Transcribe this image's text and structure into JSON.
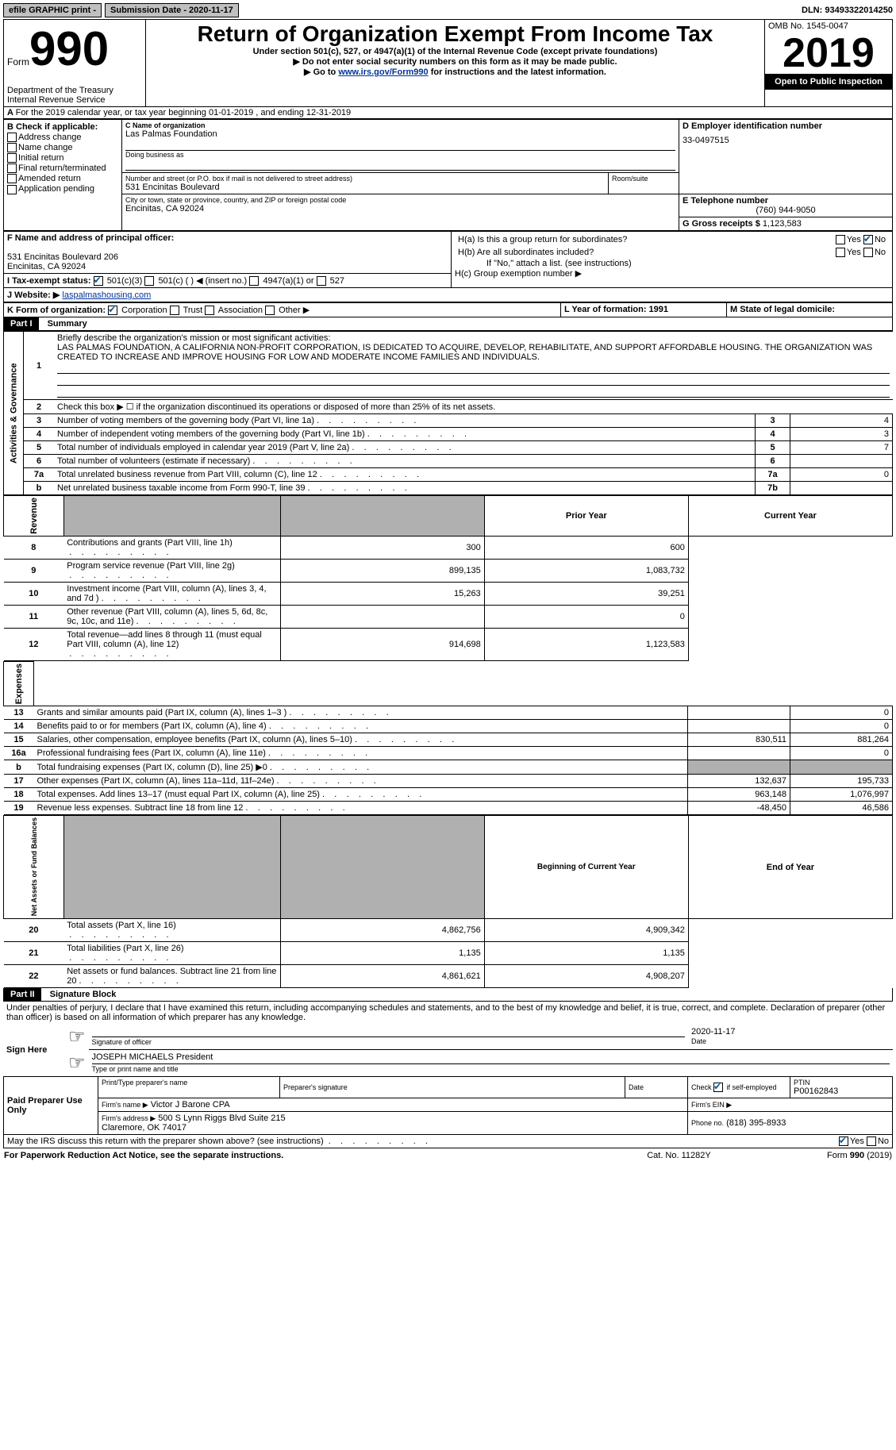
{
  "top": {
    "efile": "efile GRAPHIC print -",
    "submission": "Submission Date - 2020-11-17",
    "dln": "DLN: 93493322014250"
  },
  "header": {
    "form_word": "Form",
    "form_num": "990",
    "dept": "Department of the Treasury\nInternal Revenue Service",
    "title": "Return of Organization Exempt From Income Tax",
    "subtitle": "Under section 501(c), 527, or 4947(a)(1) of the Internal Revenue Code (except private foundations)",
    "note1": "▶ Do not enter social security numbers on this form as it may be made public.",
    "note2_pre": "▶ Go to ",
    "note2_link": "www.irs.gov/Form990",
    "note2_post": " for instructions and the latest information.",
    "omb": "OMB No. 1545-0047",
    "year": "2019",
    "inspect": "Open to Public Inspection"
  },
  "A": "For the 2019 calendar year, or tax year beginning 01-01-2019   , and ending 12-31-2019",
  "B": {
    "label": "B Check if applicable:",
    "items": [
      "Address change",
      "Name change",
      "Initial return",
      "Final return/terminated",
      "Amended return",
      "Application pending"
    ]
  },
  "C": {
    "name_label": "C Name of organization",
    "name": "Las Palmas Foundation",
    "dba_label": "Doing business as",
    "addr_label": "Number and street (or P.O. box if mail is not delivered to street address)",
    "room_label": "Room/suite",
    "addr": "531 Encinitas Boulevard",
    "city_label": "City or town, state or province, country, and ZIP or foreign postal code",
    "city": "Encinitas, CA  92024"
  },
  "D": {
    "label": "D Employer identification number",
    "val": "33-0497515"
  },
  "E": {
    "label": "E Telephone number",
    "val": "(760) 944-9050"
  },
  "G": {
    "label": "G Gross receipts $",
    "val": "1,123,583"
  },
  "F": {
    "label": "F Name and address of principal officer:",
    "addr1": "531 Encinitas Boulevard 206",
    "addr2": "Encinitas, CA  92024"
  },
  "H": {
    "a": "H(a)  Is this a group return for subordinates?",
    "b": "H(b)  Are all subordinates included?",
    "note": "If \"No,\" attach a list. (see instructions)",
    "c": "H(c)  Group exemption number ▶",
    "yes": "Yes",
    "no": "No"
  },
  "I": {
    "label": "I   Tax-exempt status:",
    "o1": "501(c)(3)",
    "o2": "501(c) (  ) ◀ (insert no.)",
    "o3": "4947(a)(1) or",
    "o4": "527"
  },
  "J": {
    "label": "J   Website: ▶",
    "val": "laspalmashousing.com"
  },
  "K": {
    "label": "K Form of organization:",
    "o1": "Corporation",
    "o2": "Trust",
    "o3": "Association",
    "o4": "Other ▶"
  },
  "L": {
    "label": "L Year of formation: 1991"
  },
  "M": {
    "label": "M State of legal domicile:"
  },
  "part1": {
    "header": "Part I",
    "title": "Summary",
    "q1": "Briefly describe the organization's mission or most significant activities:",
    "mission": "LAS PALMAS FOUNDATION, A CALIFORNIA NON-PROFIT CORPORATION, IS DEDICATED TO ACQUIRE, DEVELOP, REHABILITATE, AND SUPPORT AFFORDABLE HOUSING. THE ORGANIZATION WAS CREATED TO INCREASE AND IMPROVE HOUSING FOR LOW AND MODERATE INCOME FAMILIES AND INDIVIDUALS.",
    "q2": "Check this box ▶ ☐  if the organization discontinued its operations or disposed of more than 25% of its net assets.",
    "rows_gov": [
      {
        "n": "3",
        "t": "Number of voting members of the governing body (Part VI, line 1a)",
        "box": "3",
        "v": "4"
      },
      {
        "n": "4",
        "t": "Number of independent voting members of the governing body (Part VI, line 1b)",
        "box": "4",
        "v": "3"
      },
      {
        "n": "5",
        "t": "Total number of individuals employed in calendar year 2019 (Part V, line 2a)",
        "box": "5",
        "v": "7"
      },
      {
        "n": "6",
        "t": "Total number of volunteers (estimate if necessary)",
        "box": "6",
        "v": ""
      },
      {
        "n": "7a",
        "t": "Total unrelated business revenue from Part VIII, column (C), line 12",
        "box": "7a",
        "v": "0"
      },
      {
        "n": "b",
        "t": "Net unrelated business taxable income from Form 990-T, line 39",
        "box": "7b",
        "v": ""
      }
    ],
    "col_prior": "Prior Year",
    "col_curr": "Current Year",
    "rows_rev": [
      {
        "n": "8",
        "t": "Contributions and grants (Part VIII, line 1h)",
        "p": "300",
        "c": "600"
      },
      {
        "n": "9",
        "t": "Program service revenue (Part VIII, line 2g)",
        "p": "899,135",
        "c": "1,083,732"
      },
      {
        "n": "10",
        "t": "Investment income (Part VIII, column (A), lines 3, 4, and 7d )",
        "p": "15,263",
        "c": "39,251"
      },
      {
        "n": "11",
        "t": "Other revenue (Part VIII, column (A), lines 5, 6d, 8c, 9c, 10c, and 11e)",
        "p": "",
        "c": "0"
      },
      {
        "n": "12",
        "t": "Total revenue—add lines 8 through 11 (must equal Part VIII, column (A), line 12)",
        "p": "914,698",
        "c": "1,123,583"
      }
    ],
    "rows_exp": [
      {
        "n": "13",
        "t": "Grants and similar amounts paid (Part IX, column (A), lines 1–3 )",
        "p": "",
        "c": "0"
      },
      {
        "n": "14",
        "t": "Benefits paid to or for members (Part IX, column (A), line 4)",
        "p": "",
        "c": "0"
      },
      {
        "n": "15",
        "t": "Salaries, other compensation, employee benefits (Part IX, column (A), lines 5–10)",
        "p": "830,511",
        "c": "881,264"
      },
      {
        "n": "16a",
        "t": "Professional fundraising fees (Part IX, column (A), line 11e)",
        "p": "",
        "c": "0"
      },
      {
        "n": "b",
        "t": "Total fundraising expenses (Part IX, column (D), line 25) ▶0",
        "p": "grey",
        "c": "grey"
      },
      {
        "n": "17",
        "t": "Other expenses (Part IX, column (A), lines 11a–11d, 11f–24e)",
        "p": "132,637",
        "c": "195,733"
      },
      {
        "n": "18",
        "t": "Total expenses. Add lines 13–17 (must equal Part IX, column (A), line 25)",
        "p": "963,148",
        "c": "1,076,997"
      },
      {
        "n": "19",
        "t": "Revenue less expenses. Subtract line 18 from line 12",
        "p": "-48,450",
        "c": "46,586"
      }
    ],
    "col_begin": "Beginning of Current Year",
    "col_end": "End of Year",
    "rows_net": [
      {
        "n": "20",
        "t": "Total assets (Part X, line 16)",
        "p": "4,862,756",
        "c": "4,909,342"
      },
      {
        "n": "21",
        "t": "Total liabilities (Part X, line 26)",
        "p": "1,135",
        "c": "1,135"
      },
      {
        "n": "22",
        "t": "Net assets or fund balances. Subtract line 21 from line 20",
        "p": "4,861,621",
        "c": "4,908,207"
      }
    ],
    "vlabels": {
      "gov": "Activities & Governance",
      "rev": "Revenue",
      "exp": "Expenses",
      "net": "Net Assets or Fund Balances"
    }
  },
  "part2": {
    "header": "Part II",
    "title": "Signature Block",
    "declaration": "Under penalties of perjury, I declare that I have examined this return, including accompanying schedules and statements, and to the best of my knowledge and belief, it is true, correct, and complete. Declaration of preparer (other than officer) is based on all information of which preparer has any knowledge.",
    "sign_here": "Sign Here",
    "sig_officer": "Signature of officer",
    "sig_date": "Date",
    "sig_date_val": "2020-11-17",
    "officer_name": "JOSEPH MICHAELS  President",
    "type_name": "Type or print name and title",
    "paid": "Paid Preparer Use Only",
    "prep_name_label": "Print/Type preparer's name",
    "prep_sig_label": "Preparer's signature",
    "date_label": "Date",
    "check_label": "Check ☑ if self-employed",
    "ptin_label": "PTIN",
    "ptin_val": "P00162843",
    "firm_name_label": "Firm's name    ▶",
    "firm_name": "Victor J Barone CPA",
    "firm_ein_label": "Firm's EIN ▶",
    "firm_addr_label": "Firm's address ▶",
    "firm_addr": "500 S Lynn Riggs Blvd Suite 215\nClaremore, OK  74017",
    "phone_label": "Phone no.",
    "phone": "(818) 395-8933",
    "discuss": "May the IRS discuss this return with the preparer shown above? (see instructions)",
    "yes": "Yes",
    "no": "No"
  },
  "footer": {
    "left": "For Paperwork Reduction Act Notice, see the separate instructions.",
    "mid": "Cat. No. 11282Y",
    "right": "Form 990 (2019)"
  }
}
